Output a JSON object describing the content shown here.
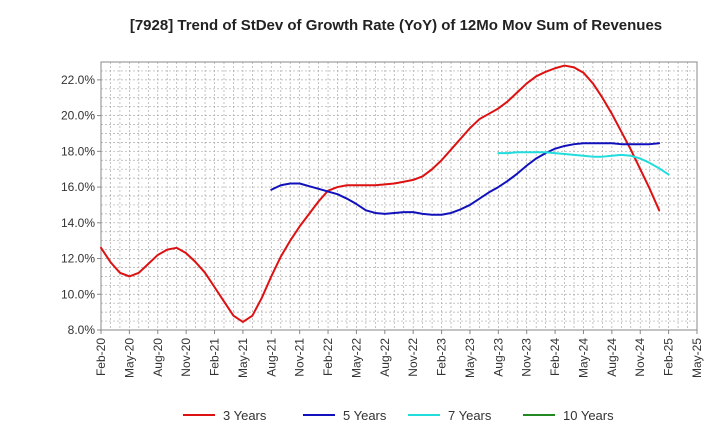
{
  "chart_data": {
    "type": "line",
    "title": "[7928]  Trend of StDev of Growth Rate (YoY) of 12Mo Mov Sum of Revenues",
    "xlabel": "",
    "ylabel": "",
    "ylim": [
      8.0,
      23.0
    ],
    "yticks": [
      8.0,
      10.0,
      12.0,
      14.0,
      16.0,
      18.0,
      20.0,
      22.0
    ],
    "ytick_labels": [
      "8.0%",
      "10.0%",
      "12.0%",
      "14.0%",
      "16.0%",
      "18.0%",
      "20.0%",
      "22.0%"
    ],
    "x_start": "Feb-20",
    "x_months": 63,
    "xtick_labels": [
      "Feb-20",
      "May-20",
      "Aug-20",
      "Nov-20",
      "Feb-21",
      "May-21",
      "Aug-21",
      "Nov-21",
      "Feb-22",
      "May-22",
      "Aug-22",
      "Nov-22",
      "Feb-23",
      "May-23",
      "Aug-23",
      "Nov-23",
      "Feb-24",
      "May-24",
      "Aug-24",
      "Nov-24",
      "Feb-25",
      "May-25"
    ],
    "grid": true,
    "legend_position": "bottom",
    "series": [
      {
        "name": "3 Years",
        "color": "#dd1111",
        "start_index": 0,
        "values": [
          12.6,
          11.8,
          11.2,
          11.0,
          11.2,
          11.7,
          12.2,
          12.5,
          12.6,
          12.3,
          11.8,
          11.2,
          10.4,
          9.6,
          8.8,
          8.45,
          8.8,
          9.8,
          11.0,
          12.1,
          13.0,
          13.8,
          14.5,
          15.2,
          15.8,
          16.0,
          16.1,
          16.1,
          16.1,
          16.1,
          16.15,
          16.2,
          16.3,
          16.4,
          16.6,
          17.0,
          17.5,
          18.1,
          18.7,
          19.3,
          19.8,
          20.1,
          20.4,
          20.8,
          21.3,
          21.8,
          22.2,
          22.45,
          22.65,
          22.8,
          22.7,
          22.4,
          21.8,
          21.0,
          20.1,
          19.1,
          18.1,
          17.0,
          15.9,
          14.7
        ]
      },
      {
        "name": "5 Years",
        "color": "#1111bb",
        "start_index": 18,
        "values": [
          15.85,
          16.1,
          16.2,
          16.2,
          16.05,
          15.9,
          15.75,
          15.6,
          15.35,
          15.05,
          14.7,
          14.55,
          14.5,
          14.55,
          14.6,
          14.6,
          14.5,
          14.45,
          14.45,
          14.55,
          14.75,
          15.0,
          15.35,
          15.7,
          16.0,
          16.35,
          16.75,
          17.2,
          17.6,
          17.9,
          18.15,
          18.3,
          18.4,
          18.45,
          18.45,
          18.45,
          18.45,
          18.4,
          18.4,
          18.4,
          18.4,
          18.45
        ]
      },
      {
        "name": "7 Years",
        "color": "#22dddd",
        "start_index": 42,
        "values": [
          17.9,
          17.9,
          17.95,
          17.95,
          17.95,
          17.95,
          17.9,
          17.85,
          17.8,
          17.75,
          17.7,
          17.7,
          17.75,
          17.8,
          17.75,
          17.6,
          17.35,
          17.05,
          16.7
        ]
      },
      {
        "name": "10 Years",
        "color": "#228822",
        "start_index": 0,
        "values": []
      }
    ]
  }
}
